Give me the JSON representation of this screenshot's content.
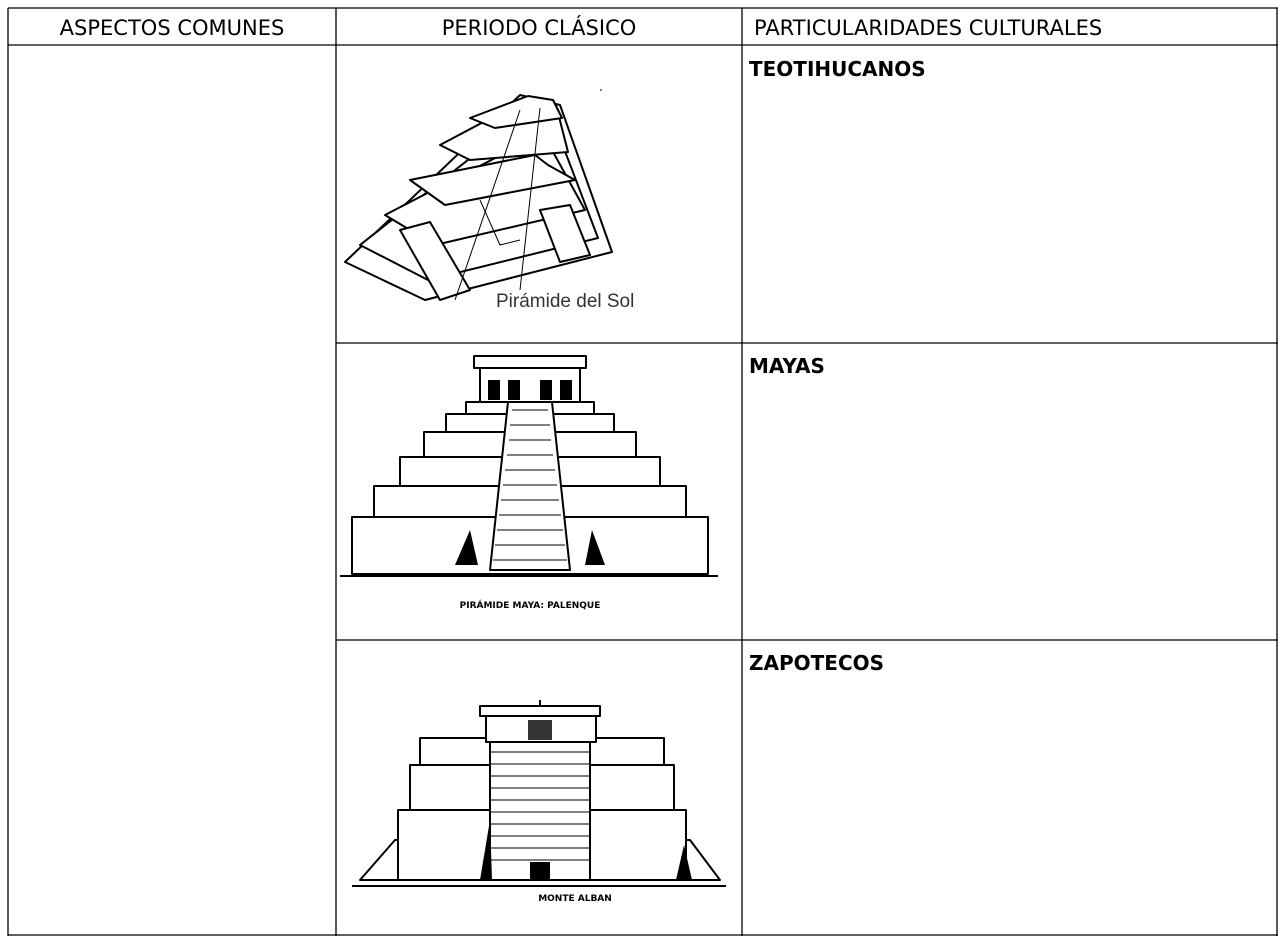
{
  "table": {
    "headers": [
      "ASPECTOS COMUNES",
      "PERIODO CLÁSICO",
      "PARTICULARIDADES CULTURALES"
    ],
    "rows": [
      {
        "image_caption": "Pirámide del Sol",
        "culture": "TEOTIHUCANOS"
      },
      {
        "image_caption": "PIRÁMIDE MAYA: PALENQUE",
        "culture": "MAYAS"
      },
      {
        "image_caption": "MONTE ALBAN",
        "culture": "ZAPOTECOS"
      }
    ]
  }
}
